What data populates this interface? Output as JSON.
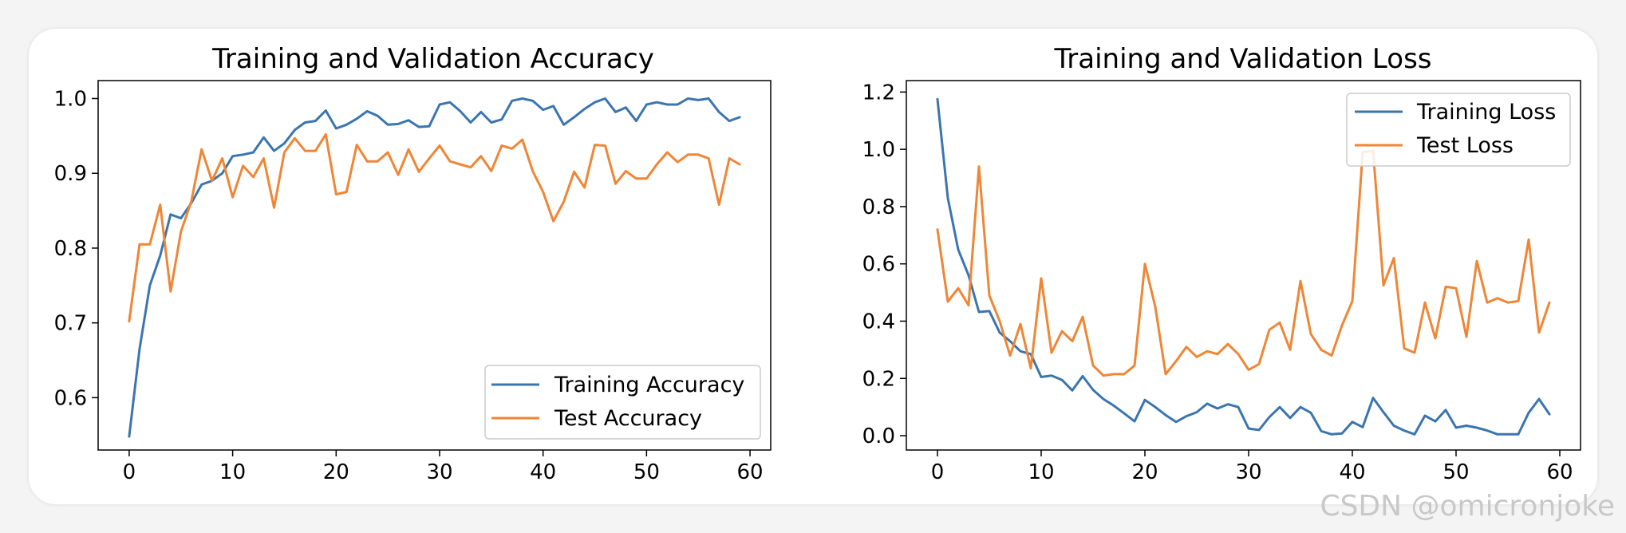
{
  "watermark": "CSDN @omicronjoke",
  "colors": {
    "training": "#3b75af",
    "test": "#ef8636",
    "axis": "#000000"
  },
  "chart_data": [
    {
      "type": "line",
      "title": "Training and Validation Accuracy",
      "xlabel": "",
      "ylabel": "",
      "xlim": [
        -3,
        62
      ],
      "ylim": [
        0.53,
        1.024
      ],
      "xticks": [
        0,
        10,
        20,
        30,
        40,
        50,
        60
      ],
      "yticks": [
        0.6,
        0.7,
        0.8,
        0.9,
        1.0
      ],
      "ytick_labels": [
        "0.6",
        "0.7",
        "0.8",
        "0.9",
        "1.0"
      ],
      "legend_position": "lower-right",
      "x": [
        0,
        1,
        2,
        3,
        4,
        5,
        6,
        7,
        8,
        9,
        10,
        11,
        12,
        13,
        14,
        15,
        16,
        17,
        18,
        19,
        20,
        21,
        22,
        23,
        24,
        25,
        26,
        27,
        28,
        29,
        30,
        31,
        32,
        33,
        34,
        35,
        36,
        37,
        38,
        39,
        40,
        41,
        42,
        43,
        44,
        45,
        46,
        47,
        48,
        49,
        50,
        51,
        52,
        53,
        54,
        55,
        56,
        57,
        58,
        59
      ],
      "series": [
        {
          "name": "Training Accuracy",
          "color": "#3b75af",
          "values": [
            0.548,
            0.665,
            0.75,
            0.79,
            0.845,
            0.84,
            0.86,
            0.885,
            0.89,
            0.9,
            0.923,
            0.925,
            0.928,
            0.948,
            0.93,
            0.94,
            0.958,
            0.968,
            0.97,
            0.984,
            0.96,
            0.965,
            0.973,
            0.983,
            0.977,
            0.965,
            0.966,
            0.971,
            0.962,
            0.963,
            0.992,
            0.995,
            0.983,
            0.968,
            0.982,
            0.968,
            0.972,
            0.997,
            1.0,
            0.997,
            0.985,
            0.99,
            0.965,
            0.975,
            0.986,
            0.995,
            1.0,
            0.982,
            0.988,
            0.97,
            0.992,
            0.995,
            0.992,
            0.992,
            1.0,
            0.998,
            1.0,
            0.982,
            0.97,
            0.975
          ]
        },
        {
          "name": "Test Accuracy",
          "color": "#ef8636",
          "values": [
            0.702,
            0.805,
            0.805,
            0.858,
            0.742,
            0.822,
            0.862,
            0.932,
            0.89,
            0.92,
            0.868,
            0.91,
            0.895,
            0.92,
            0.854,
            0.928,
            0.947,
            0.93,
            0.93,
            0.952,
            0.872,
            0.875,
            0.938,
            0.916,
            0.916,
            0.928,
            0.898,
            0.932,
            0.902,
            0.92,
            0.937,
            0.916,
            0.912,
            0.908,
            0.923,
            0.903,
            0.937,
            0.933,
            0.945,
            0.903,
            0.875,
            0.836,
            0.862,
            0.902,
            0.881,
            0.938,
            0.937,
            0.886,
            0.903,
            0.893,
            0.893,
            0.912,
            0.928,
            0.915,
            0.925,
            0.925,
            0.92,
            0.858,
            0.92,
            0.912
          ]
        }
      ]
    },
    {
      "type": "line",
      "title": "Training and Validation Loss",
      "xlabel": "",
      "ylabel": "",
      "xlim": [
        -3,
        62
      ],
      "ylim": [
        -0.05,
        1.24
      ],
      "xticks": [
        0,
        10,
        20,
        30,
        40,
        50,
        60
      ],
      "yticks": [
        0.0,
        0.2,
        0.4,
        0.6,
        0.8,
        1.0,
        1.2
      ],
      "ytick_labels": [
        "0.0",
        "0.2",
        "0.4",
        "0.6",
        "0.8",
        "1.0",
        "1.2"
      ],
      "legend_position": "upper-right",
      "x": [
        0,
        1,
        2,
        3,
        4,
        5,
        6,
        7,
        8,
        9,
        10,
        11,
        12,
        13,
        14,
        15,
        16,
        17,
        18,
        19,
        20,
        21,
        22,
        23,
        24,
        25,
        26,
        27,
        28,
        29,
        30,
        31,
        32,
        33,
        34,
        35,
        36,
        37,
        38,
        39,
        40,
        41,
        42,
        43,
        44,
        45,
        46,
        47,
        48,
        49,
        50,
        51,
        52,
        53,
        54,
        55,
        56,
        57,
        58,
        59
      ],
      "series": [
        {
          "name": "Training Loss",
          "color": "#3b75af",
          "values": [
            1.175,
            0.83,
            0.65,
            0.56,
            0.432,
            0.435,
            0.36,
            0.33,
            0.295,
            0.285,
            0.205,
            0.21,
            0.195,
            0.158,
            0.208,
            0.16,
            0.128,
            0.105,
            0.078,
            0.05,
            0.125,
            0.1,
            0.072,
            0.048,
            0.068,
            0.082,
            0.112,
            0.095,
            0.11,
            0.1,
            0.025,
            0.02,
            0.065,
            0.1,
            0.062,
            0.1,
            0.08,
            0.016,
            0.005,
            0.008,
            0.048,
            0.03,
            0.132,
            0.082,
            0.035,
            0.018,
            0.005,
            0.07,
            0.05,
            0.09,
            0.028,
            0.035,
            0.028,
            0.018,
            0.005,
            0.005,
            0.005,
            0.08,
            0.128,
            0.075
          ]
        },
        {
          "name": "Test Loss",
          "color": "#ef8636",
          "values": [
            0.72,
            0.468,
            0.515,
            0.455,
            0.94,
            0.49,
            0.4,
            0.28,
            0.39,
            0.235,
            0.55,
            0.29,
            0.365,
            0.33,
            0.415,
            0.245,
            0.21,
            0.215,
            0.215,
            0.245,
            0.6,
            0.45,
            0.215,
            0.26,
            0.31,
            0.275,
            0.295,
            0.285,
            0.32,
            0.285,
            0.23,
            0.25,
            0.37,
            0.395,
            0.3,
            0.54,
            0.355,
            0.3,
            0.28,
            0.385,
            0.47,
            0.99,
            0.995,
            0.525,
            0.62,
            0.305,
            0.29,
            0.465,
            0.34,
            0.52,
            0.515,
            0.345,
            0.61,
            0.465,
            0.48,
            0.465,
            0.47,
            0.685,
            0.36,
            0.465
          ]
        }
      ]
    }
  ]
}
